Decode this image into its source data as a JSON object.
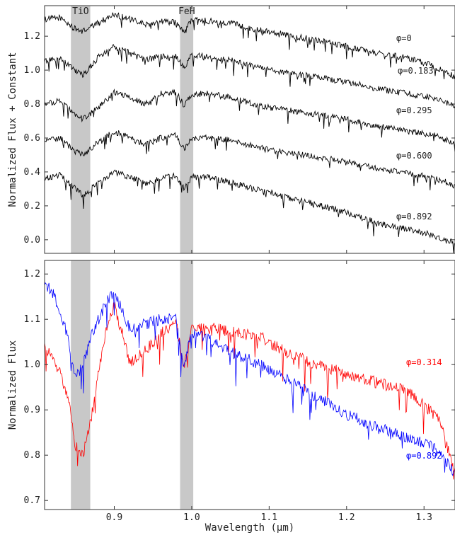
{
  "chart_data": [
    {
      "type": "line",
      "panel": "top",
      "xlabel": "",
      "ylabel": "Normalized Flux + Constant",
      "xlim": [
        0.81,
        1.34
      ],
      "ylim": [
        -0.08,
        1.38
      ],
      "xticks": [
        0.9,
        1.0,
        1.1,
        1.2,
        1.3
      ],
      "yticks": [
        0.0,
        0.2,
        0.4,
        0.6,
        0.8,
        1.0,
        1.2
      ],
      "ytick_labels": [
        "0.0",
        "0.2",
        "0.4",
        "0.6",
        "0.8",
        "1.0",
        "1.2"
      ],
      "bands": [
        {
          "label": "TiO",
          "x0": 0.844,
          "x1": 0.869
        },
        {
          "label": "FeH",
          "x0": 0.985,
          "x1": 1.002
        }
      ],
      "series": [
        {
          "name": "φ=0",
          "color": "#000000",
          "offset": 1.0,
          "x": [
            0.81,
            0.83,
            0.85,
            0.86,
            0.88,
            0.9,
            0.92,
            0.94,
            0.96,
            0.98,
            0.99,
            1.0,
            1.02,
            1.05,
            1.08,
            1.1,
            1.13,
            1.16,
            1.2,
            1.24,
            1.28,
            1.31,
            1.34
          ],
          "y": [
            1.3,
            1.31,
            1.24,
            1.23,
            1.28,
            1.33,
            1.3,
            1.27,
            1.29,
            1.28,
            1.22,
            1.3,
            1.29,
            1.28,
            1.24,
            1.23,
            1.2,
            1.18,
            1.14,
            1.1,
            1.07,
            1.03,
            0.96
          ]
        },
        {
          "name": "φ=0.183",
          "color": "#000000",
          "offset": 0.78,
          "x": [
            0.81,
            0.83,
            0.85,
            0.86,
            0.88,
            0.9,
            0.92,
            0.94,
            0.96,
            0.98,
            0.99,
            1.0,
            1.02,
            1.05,
            1.08,
            1.1,
            1.13,
            1.16,
            1.2,
            1.24,
            1.28,
            1.31,
            1.34
          ],
          "y": [
            1.05,
            1.07,
            1.0,
            0.97,
            1.08,
            1.14,
            1.1,
            1.06,
            1.08,
            1.08,
            1.01,
            1.09,
            1.08,
            1.06,
            1.02,
            1.0,
            0.98,
            0.96,
            0.93,
            0.89,
            0.86,
            0.84,
            0.79
          ]
        },
        {
          "name": "φ=0.295",
          "color": "#000000",
          "offset": 0.56,
          "x": [
            0.81,
            0.83,
            0.85,
            0.86,
            0.88,
            0.9,
            0.92,
            0.94,
            0.96,
            0.98,
            0.99,
            1.0,
            1.02,
            1.05,
            1.08,
            1.1,
            1.13,
            1.16,
            1.2,
            1.24,
            1.28,
            1.31,
            1.34
          ],
          "y": [
            0.8,
            0.82,
            0.74,
            0.71,
            0.78,
            0.87,
            0.84,
            0.8,
            0.86,
            0.87,
            0.79,
            0.86,
            0.86,
            0.84,
            0.8,
            0.78,
            0.76,
            0.74,
            0.71,
            0.67,
            0.64,
            0.62,
            0.57
          ]
        },
        {
          "name": "φ=0.600",
          "color": "#000000",
          "offset": 0.34,
          "x": [
            0.81,
            0.83,
            0.85,
            0.86,
            0.88,
            0.9,
            0.92,
            0.94,
            0.96,
            0.98,
            0.99,
            1.0,
            1.02,
            1.05,
            1.08,
            1.1,
            1.13,
            1.16,
            1.2,
            1.24,
            1.28,
            1.31,
            1.34
          ],
          "y": [
            0.58,
            0.6,
            0.52,
            0.5,
            0.58,
            0.64,
            0.6,
            0.56,
            0.6,
            0.62,
            0.53,
            0.6,
            0.6,
            0.59,
            0.55,
            0.53,
            0.51,
            0.49,
            0.46,
            0.42,
            0.39,
            0.37,
            0.32
          ]
        },
        {
          "name": "φ=0.892",
          "color": "#000000",
          "offset": 0.12,
          "x": [
            0.81,
            0.83,
            0.85,
            0.86,
            0.88,
            0.9,
            0.92,
            0.94,
            0.96,
            0.98,
            0.99,
            1.0,
            1.02,
            1.05,
            1.08,
            1.1,
            1.13,
            1.16,
            1.2,
            1.24,
            1.28,
            1.31,
            1.34
          ],
          "y": [
            0.36,
            0.38,
            0.3,
            0.26,
            0.34,
            0.4,
            0.37,
            0.33,
            0.36,
            0.38,
            0.3,
            0.37,
            0.37,
            0.34,
            0.3,
            0.28,
            0.24,
            0.21,
            0.16,
            0.1,
            0.06,
            0.03,
            -0.02
          ]
        }
      ]
    },
    {
      "type": "line",
      "panel": "bottom",
      "xlabel": "Wavelength (μm)",
      "ylabel": "Normalized Flux",
      "xlim": [
        0.81,
        1.34
      ],
      "ylim": [
        0.68,
        1.23
      ],
      "xticks": [
        0.9,
        1.0,
        1.1,
        1.2,
        1.3
      ],
      "xtick_labels": [
        "0.9",
        "1.0",
        "1.1",
        "1.2",
        "1.3"
      ],
      "yticks": [
        0.7,
        0.8,
        0.9,
        1.0,
        1.1,
        1.2
      ],
      "ytick_labels": [
        "0.7",
        "0.8",
        "0.9",
        "1.0",
        "1.1",
        "1.2"
      ],
      "bands": [
        {
          "label": "",
          "x0": 0.844,
          "x1": 0.869
        },
        {
          "label": "",
          "x0": 0.985,
          "x1": 1.002
        }
      ],
      "series": [
        {
          "name": "φ=0.314",
          "color": "#ff0000",
          "x": [
            0.81,
            0.82,
            0.83,
            0.84,
            0.85,
            0.86,
            0.87,
            0.88,
            0.89,
            0.9,
            0.91,
            0.92,
            0.94,
            0.96,
            0.98,
            0.99,
            1.0,
            1.03,
            1.06,
            1.09,
            1.12,
            1.16,
            1.2,
            1.24,
            1.28,
            1.32,
            1.34
          ],
          "y": [
            1.04,
            1.02,
            0.98,
            0.93,
            0.82,
            0.8,
            0.88,
            0.99,
            1.08,
            1.13,
            1.07,
            1.0,
            1.03,
            1.07,
            1.09,
            0.99,
            1.08,
            1.08,
            1.07,
            1.06,
            1.03,
            1.0,
            0.98,
            0.96,
            0.94,
            0.88,
            0.76
          ]
        },
        {
          "name": "φ=0.892",
          "color": "#0000ff",
          "x": [
            0.81,
            0.82,
            0.83,
            0.84,
            0.85,
            0.86,
            0.87,
            0.88,
            0.89,
            0.9,
            0.91,
            0.92,
            0.94,
            0.96,
            0.98,
            0.99,
            1.0,
            1.03,
            1.06,
            1.09,
            1.12,
            1.16,
            1.2,
            1.24,
            1.28,
            1.32,
            1.34
          ],
          "y": [
            1.18,
            1.16,
            1.12,
            1.06,
            0.97,
            1.0,
            1.06,
            1.1,
            1.14,
            1.16,
            1.12,
            1.08,
            1.09,
            1.1,
            1.1,
            1.0,
            1.07,
            1.05,
            1.02,
            1.0,
            0.97,
            0.93,
            0.89,
            0.86,
            0.84,
            0.81,
            0.76
          ]
        }
      ]
    }
  ]
}
